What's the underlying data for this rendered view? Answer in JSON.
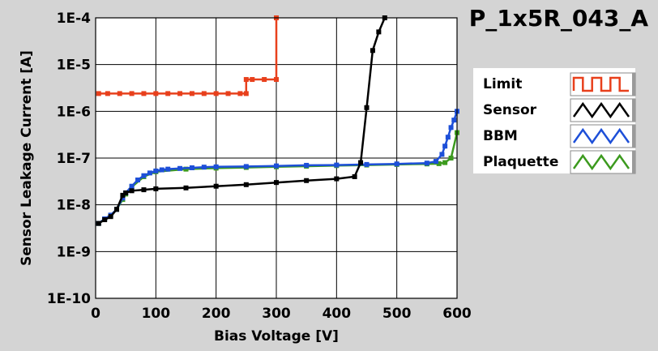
{
  "chart_data": {
    "type": "line",
    "title": "P_1x5R_043_A",
    "xlabel": "Bias Voltage [V]",
    "ylabel": "Sensor Leakage Current [A]",
    "xlim": [
      0,
      600
    ],
    "ylim": [
      1e-10,
      0.0001
    ],
    "yscale": "log",
    "grid": true,
    "legend_position": "right",
    "x_ticks": [
      "0",
      "100",
      "200",
      "300",
      "400",
      "500",
      "600"
    ],
    "x_tick_values": [
      0,
      100,
      200,
      300,
      400,
      500,
      600
    ],
    "y_ticks": [
      "1E-10",
      "1E-9",
      "1E-8",
      "1E-7",
      "1E-6",
      "1E-5",
      "1E-4"
    ],
    "y_tick_values": [
      1e-10,
      1e-09,
      1e-08,
      1e-07,
      1e-06,
      1e-05,
      0.0001
    ],
    "series": [
      {
        "name": "Limit",
        "color": "#e8401c",
        "x": [
          5,
          20,
          40,
          60,
          80,
          100,
          120,
          140,
          160,
          180,
          200,
          220,
          240,
          250,
          250,
          260,
          280,
          300,
          300
        ],
        "y": [
          2.4e-06,
          2.4e-06,
          2.4e-06,
          2.4e-06,
          2.4e-06,
          2.4e-06,
          2.4e-06,
          2.4e-06,
          2.4e-06,
          2.4e-06,
          2.4e-06,
          2.4e-06,
          2.4e-06,
          2.4e-06,
          4.8e-06,
          4.8e-06,
          4.8e-06,
          4.8e-06,
          0.0001
        ]
      },
      {
        "name": "Sensor",
        "color": "#000000",
        "x": [
          5,
          15,
          25,
          35,
          45,
          50,
          60,
          80,
          100,
          150,
          200,
          250,
          300,
          350,
          400,
          430,
          440,
          450,
          460,
          470,
          480
        ],
        "y": [
          4e-09,
          4.8e-09,
          5.6e-09,
          8e-09,
          1.6e-08,
          1.8e-08,
          2e-08,
          2.1e-08,
          2.2e-08,
          2.3e-08,
          2.5e-08,
          2.7e-08,
          3e-08,
          3.3e-08,
          3.6e-08,
          4e-08,
          8e-08,
          1.2e-06,
          2e-05,
          5e-05,
          0.0001
        ]
      },
      {
        "name": "BBM",
        "color": "#1d4fd8",
        "x": [
          5,
          15,
          25,
          35,
          45,
          50,
          60,
          70,
          80,
          90,
          100,
          110,
          120,
          140,
          160,
          180,
          200,
          250,
          300,
          350,
          400,
          450,
          500,
          550,
          565,
          575,
          580,
          585,
          590,
          595,
          600
        ],
        "y": [
          4e-09,
          5e-09,
          6e-09,
          8e-09,
          1.4e-08,
          1.8e-08,
          2.5e-08,
          3.4e-08,
          4.2e-08,
          4.8e-08,
          5.3e-08,
          5.6e-08,
          5.8e-08,
          6e-08,
          6.2e-08,
          6.4e-08,
          6.5e-08,
          6.6e-08,
          6.8e-08,
          7e-08,
          7.1e-08,
          7.3e-08,
          7.5e-08,
          7.8e-08,
          8.5e-08,
          1.2e-07,
          1.8e-07,
          2.8e-07,
          4.5e-07,
          6.5e-07,
          1e-06
        ]
      },
      {
        "name": "Plaquette",
        "color": "#3c9a1e",
        "x": [
          5,
          15,
          25,
          35,
          45,
          50,
          60,
          80,
          100,
          150,
          200,
          250,
          300,
          350,
          400,
          450,
          500,
          550,
          570,
          580,
          590,
          600
        ],
        "y": [
          4e-09,
          5e-09,
          6e-09,
          8e-09,
          1.3e-08,
          1.7e-08,
          2.4e-08,
          4e-08,
          5.1e-08,
          5.8e-08,
          6.1e-08,
          6.3e-08,
          6.5e-08,
          6.7e-08,
          6.9e-08,
          7.1e-08,
          7.3e-08,
          7.5e-08,
          7.6e-08,
          8e-08,
          1e-07,
          3.5e-07
        ]
      }
    ]
  }
}
